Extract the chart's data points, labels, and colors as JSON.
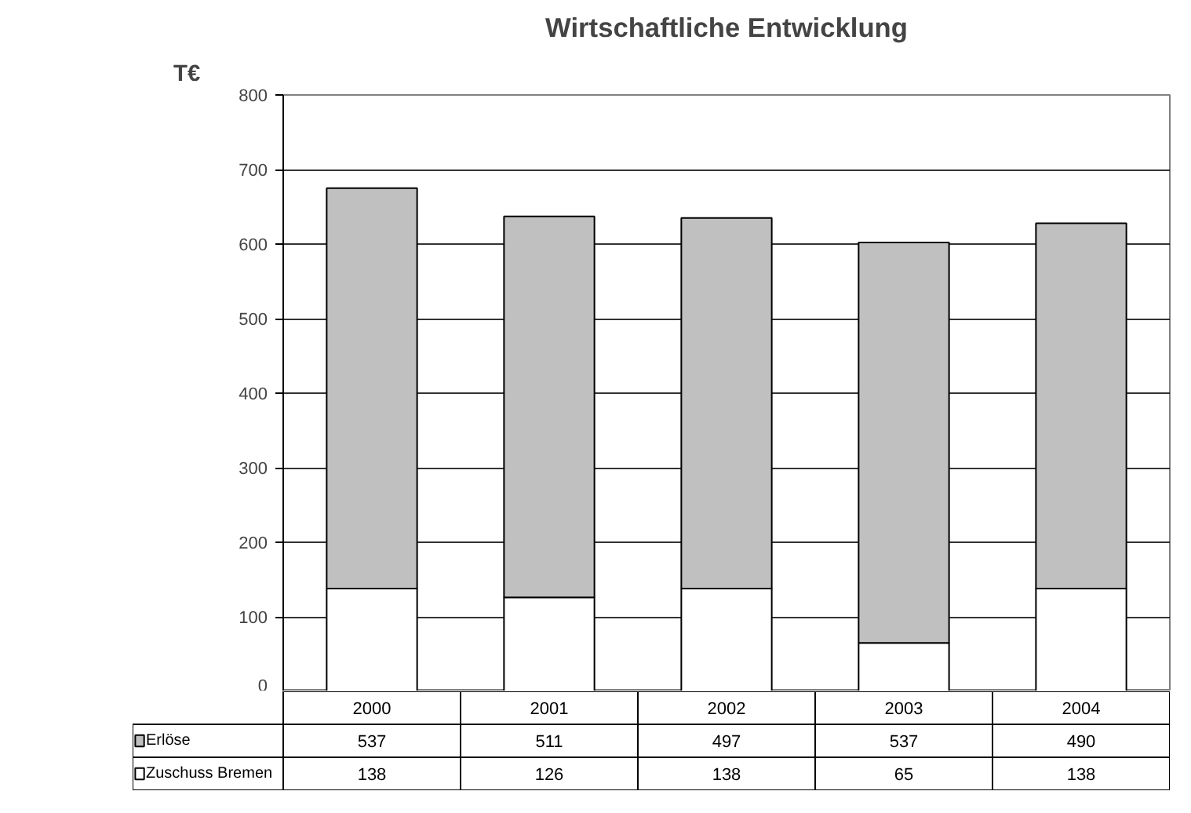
{
  "chart_data": {
    "type": "bar",
    "stacked": true,
    "title": "Wirtschaftliche Entwicklung",
    "ylabel": "T€",
    "categories": [
      "2000",
      "2001",
      "2002",
      "2003",
      "2004"
    ],
    "series": [
      {
        "name": "Zuschuss Bremen",
        "color": "#ffffff",
        "values": [
          138,
          126,
          138,
          65,
          138
        ]
      },
      {
        "name": "Erlöse",
        "color": "#c0c0c0",
        "values": [
          537,
          511,
          497,
          537,
          490
        ]
      }
    ],
    "ylim": [
      0,
      800
    ],
    "yticks": [
      0,
      100,
      200,
      300,
      400,
      500,
      600,
      700,
      800
    ],
    "grid": "y",
    "legend": "bottom left",
    "data_labels": true
  }
}
